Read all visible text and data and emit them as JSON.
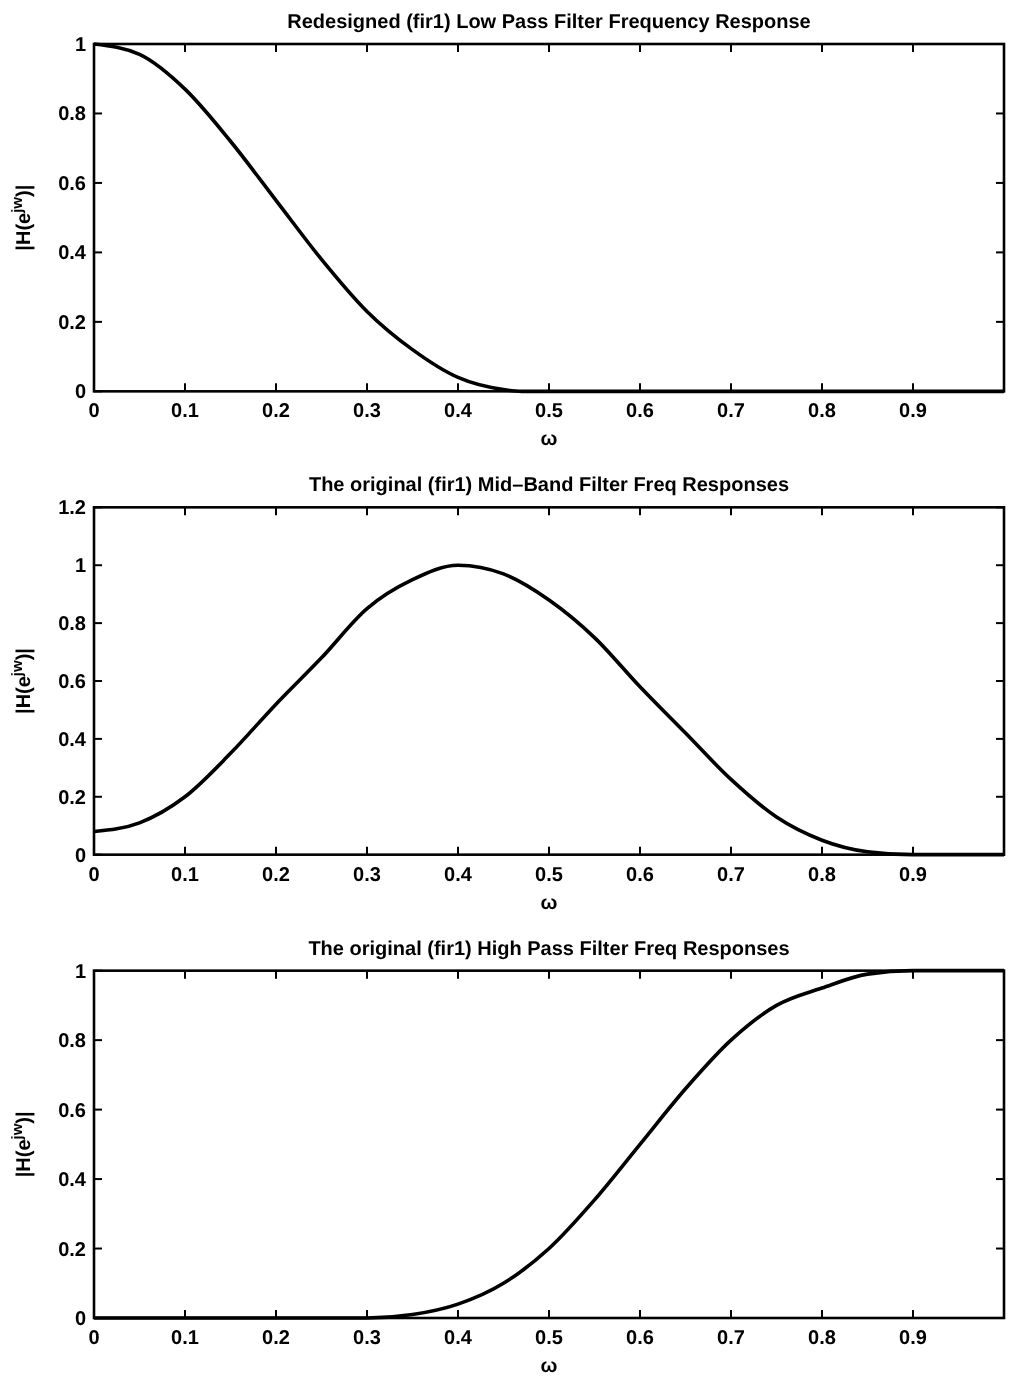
{
  "chart_data": [
    {
      "type": "line",
      "title": "Redesigned (fir1) Low Pass Filter Frequency Response",
      "xlabel": "ω",
      "ylabel": "|H(e$^{jw}$)|",
      "xlim": [
        0,
        1
      ],
      "xticks": [
        0,
        0.1,
        0.2,
        0.3,
        0.4,
        0.5,
        0.6,
        0.7,
        0.8,
        0.9
      ],
      "ylim": [
        0,
        1
      ],
      "yticks": [
        0,
        0.2,
        0.4,
        0.6,
        0.8,
        1
      ],
      "x": [
        0,
        0.05,
        0.1,
        0.15,
        0.2,
        0.25,
        0.3,
        0.35,
        0.4,
        0.45,
        0.47,
        0.5,
        0.6,
        0.7,
        0.8,
        0.9,
        1
      ],
      "series": [
        {
          "color": "#000000",
          "values": [
            1,
            0.97,
            0.87,
            0.72,
            0.55,
            0.38,
            0.23,
            0.12,
            0.04,
            0.005,
            0,
            0,
            0,
            0,
            0,
            0,
            0
          ]
        }
      ]
    },
    {
      "type": "line",
      "title": "The original (fir1) Mid–Band Filter Freq Responses",
      "xlabel": "ω",
      "ylabel": "|H(e$^{jw}$)|",
      "xlim": [
        0,
        1
      ],
      "xticks": [
        0,
        0.1,
        0.2,
        0.3,
        0.4,
        0.5,
        0.6,
        0.7,
        0.8,
        0.9
      ],
      "ylim": [
        0,
        1.2
      ],
      "yticks": [
        0,
        0.2,
        0.4,
        0.6,
        0.8,
        1,
        1.2
      ],
      "x": [
        0,
        0.05,
        0.1,
        0.15,
        0.2,
        0.25,
        0.3,
        0.35,
        0.4,
        0.45,
        0.5,
        0.55,
        0.6,
        0.65,
        0.7,
        0.75,
        0.8,
        0.85,
        0.9,
        1
      ],
      "series": [
        {
          "color": "#000000",
          "values": [
            0.08,
            0.11,
            0.2,
            0.35,
            0.52,
            0.68,
            0.85,
            0.95,
            1,
            0.97,
            0.88,
            0.75,
            0.58,
            0.42,
            0.26,
            0.13,
            0.05,
            0.01,
            0,
            0
          ]
        }
      ]
    },
    {
      "type": "line",
      "title": "The original (fir1) High Pass Filter Freq Responses",
      "xlabel": "ω",
      "ylabel": "|H(e$^{jw}$)|",
      "xlim": [
        0,
        1
      ],
      "xticks": [
        0,
        0.1,
        0.2,
        0.3,
        0.4,
        0.5,
        0.6,
        0.7,
        0.8,
        0.9
      ],
      "ylim": [
        0,
        1
      ],
      "yticks": [
        0,
        0.2,
        0.4,
        0.6,
        0.8,
        1
      ],
      "x": [
        0,
        0.1,
        0.2,
        0.3,
        0.35,
        0.4,
        0.45,
        0.5,
        0.55,
        0.6,
        0.65,
        0.7,
        0.75,
        0.8,
        0.85,
        0.9,
        1
      ],
      "series": [
        {
          "color": "#000000",
          "values": [
            0,
            0,
            0,
            0,
            0.01,
            0.04,
            0.1,
            0.2,
            0.34,
            0.5,
            0.66,
            0.8,
            0.9,
            0.95,
            0.99,
            1,
            1
          ]
        }
      ]
    }
  ]
}
